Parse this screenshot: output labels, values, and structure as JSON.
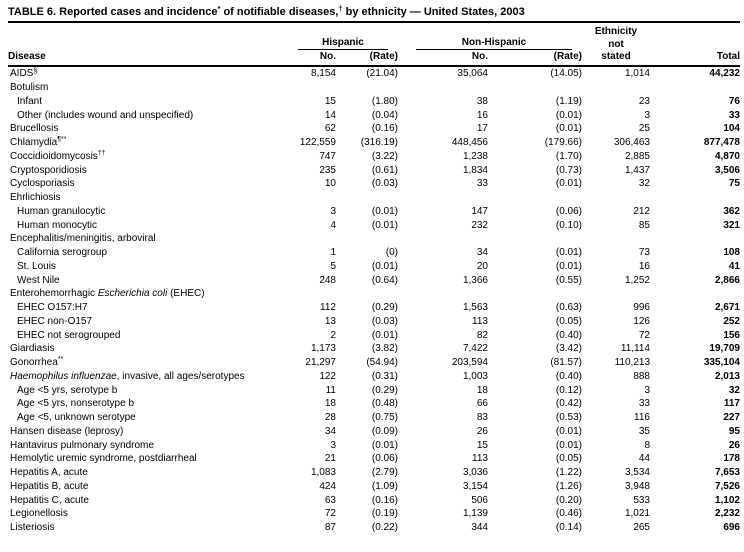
{
  "title": {
    "parts": [
      {
        "t": "TABLE 6. Reported cases and incidence"
      },
      {
        "t": "*",
        "sup": true
      },
      {
        "t": " of notifiable diseases,"
      },
      {
        "t": "†",
        "sup": true
      },
      {
        "t": " by ethnicity — United States, 2003"
      }
    ]
  },
  "columns": {
    "disease": "Disease",
    "hispanic": "Hispanic",
    "non_hispanic": "Non-Hispanic",
    "ethnicity_line1": "Ethnicity",
    "ethnicity_line2": "not",
    "ethnicity_line3": "stated",
    "no": "No.",
    "rate": "(Rate)",
    "total": "Total"
  },
  "rows": [
    {
      "parts": [
        {
          "t": "AIDS"
        },
        {
          "t": "§",
          "sup": true
        }
      ],
      "indent": 0,
      "cells": [
        "8,154",
        "(21.04)",
        "35,064",
        "(14.05)",
        "1,014",
        "44,232"
      ]
    },
    {
      "parts": [
        {
          "t": "Botulism"
        }
      ],
      "indent": 0,
      "cells": [
        "",
        "",
        "",
        "",
        "",
        ""
      ]
    },
    {
      "parts": [
        {
          "t": "Infant"
        }
      ],
      "indent": 1,
      "cells": [
        "15",
        "(1.80)",
        "38",
        "(1.19)",
        "23",
        "76"
      ]
    },
    {
      "parts": [
        {
          "t": "Other (includes wound and unspecified)"
        }
      ],
      "indent": 1,
      "cells": [
        "14",
        "(0.04)",
        "16",
        "(0.01)",
        "3",
        "33"
      ]
    },
    {
      "parts": [
        {
          "t": "Brucellosis"
        }
      ],
      "indent": 0,
      "cells": [
        "62",
        "(0.16)",
        "17",
        "(0.01)",
        "25",
        "104"
      ]
    },
    {
      "parts": [
        {
          "t": "Chlamydia"
        },
        {
          "t": "¶**",
          "sup": true
        }
      ],
      "indent": 0,
      "cells": [
        "122,559",
        "(316.19)",
        "448,456",
        "(179.66)",
        "306,463",
        "877,478"
      ]
    },
    {
      "parts": [
        {
          "t": "Coccidioidomycosis"
        },
        {
          "t": "††",
          "sup": true
        }
      ],
      "indent": 0,
      "cells": [
        "747",
        "(3.22)",
        "1,238",
        "(1.70)",
        "2,885",
        "4,870"
      ]
    },
    {
      "parts": [
        {
          "t": "Cryptosporidiosis"
        }
      ],
      "indent": 0,
      "cells": [
        "235",
        "(0.61)",
        "1,834",
        "(0.73)",
        "1,437",
        "3,506"
      ]
    },
    {
      "parts": [
        {
          "t": "Cyclosporiasis"
        }
      ],
      "indent": 0,
      "cells": [
        "10",
        "(0.03)",
        "33",
        "(0.01)",
        "32",
        "75"
      ]
    },
    {
      "parts": [
        {
          "t": "Ehrlichiosis"
        }
      ],
      "indent": 0,
      "cells": [
        "",
        "",
        "",
        "",
        "",
        ""
      ]
    },
    {
      "parts": [
        {
          "t": "Human granulocytic"
        }
      ],
      "indent": 1,
      "cells": [
        "3",
        "(0.01)",
        "147",
        "(0.06)",
        "212",
        "362"
      ]
    },
    {
      "parts": [
        {
          "t": "Human monocytic"
        }
      ],
      "indent": 1,
      "cells": [
        "4",
        "(0.01)",
        "232",
        "(0.10)",
        "85",
        "321"
      ]
    },
    {
      "parts": [
        {
          "t": "Encephalitis/meningitis, arboviral"
        }
      ],
      "indent": 0,
      "cells": [
        "",
        "",
        "",
        "",
        "",
        ""
      ]
    },
    {
      "parts": [
        {
          "t": "California serogroup"
        }
      ],
      "indent": 1,
      "cells": [
        "1",
        "(0)",
        "34",
        "(0.01)",
        "73",
        "108"
      ]
    },
    {
      "parts": [
        {
          "t": "St. Louis"
        }
      ],
      "indent": 1,
      "cells": [
        "5",
        "(0.01)",
        "20",
        "(0.01)",
        "16",
        "41"
      ]
    },
    {
      "parts": [
        {
          "t": "West Nile"
        }
      ],
      "indent": 1,
      "cells": [
        "248",
        "(0.64)",
        "1,366",
        "(0.55)",
        "1,252",
        "2,866"
      ]
    },
    {
      "parts": [
        {
          "t": "Enterohemorrhagic "
        },
        {
          "t": "Escherichia coli",
          "i": true
        },
        {
          "t": " (EHEC)"
        }
      ],
      "indent": 0,
      "cells": [
        "",
        "",
        "",
        "",
        "",
        ""
      ]
    },
    {
      "parts": [
        {
          "t": "EHEC O157:H7"
        }
      ],
      "indent": 1,
      "cells": [
        "112",
        "(0.29)",
        "1,563",
        "(0.63)",
        "996",
        "2,671"
      ]
    },
    {
      "parts": [
        {
          "t": "EHEC non-O157"
        }
      ],
      "indent": 1,
      "cells": [
        "13",
        "(0.03)",
        "113",
        "(0.05)",
        "126",
        "252"
      ]
    },
    {
      "parts": [
        {
          "t": "EHEC not serogrouped"
        }
      ],
      "indent": 1,
      "cells": [
        "2",
        "(0.01)",
        "82",
        "(0.40)",
        "72",
        "156"
      ]
    },
    {
      "parts": [
        {
          "t": "Giardiasis"
        }
      ],
      "indent": 0,
      "cells": [
        "1,173",
        "(3.82)",
        "7,422",
        "(3.42)",
        "11,114",
        "19,709"
      ]
    },
    {
      "parts": [
        {
          "t": "Gonorrhea"
        },
        {
          "t": "**",
          "sup": true
        }
      ],
      "indent": 0,
      "cells": [
        "21,297",
        "(54.94)",
        "203,594",
        "(81.57)",
        "110,213",
        "335,104"
      ]
    },
    {
      "parts": [
        {
          "t": "Haemophilus influenzae",
          "i": true
        },
        {
          "t": ", invasive, all ages/serotypes"
        }
      ],
      "indent": 0,
      "cells": [
        "122",
        "(0.31)",
        "1,003",
        "(0.40)",
        "888",
        "2,013"
      ]
    },
    {
      "parts": [
        {
          "t": "Age <5 yrs, serotype b"
        }
      ],
      "indent": 1,
      "cells": [
        "11",
        "(0.29)",
        "18",
        "(0.12)",
        "3",
        "32"
      ]
    },
    {
      "parts": [
        {
          "t": "Age <5 yrs, nonserotype b"
        }
      ],
      "indent": 1,
      "cells": [
        "18",
        "(0.48)",
        "66",
        "(0.42)",
        "33",
        "117"
      ]
    },
    {
      "parts": [
        {
          "t": "Age <5, unknown serotype"
        }
      ],
      "indent": 1,
      "cells": [
        "28",
        "(0.75)",
        "83",
        "(0.53)",
        "116",
        "227"
      ]
    },
    {
      "parts": [
        {
          "t": "Hansen disease (leprosy)"
        }
      ],
      "indent": 0,
      "cells": [
        "34",
        "(0.09)",
        "26",
        "(0.01)",
        "35",
        "95"
      ]
    },
    {
      "parts": [
        {
          "t": "Hantavirus pulmonary syndrome"
        }
      ],
      "indent": 0,
      "cells": [
        "3",
        "(0.01)",
        "15",
        "(0.01)",
        "8",
        "26"
      ]
    },
    {
      "parts": [
        {
          "t": "Hemolytic uremic syndrome, postdiarrheal"
        }
      ],
      "indent": 0,
      "cells": [
        "21",
        "(0.06)",
        "113",
        "(0.05)",
        "44",
        "178"
      ]
    },
    {
      "parts": [
        {
          "t": "Hepatitis A, acute"
        }
      ],
      "indent": 0,
      "cells": [
        "1,083",
        "(2.79)",
        "3,036",
        "(1.22)",
        "3,534",
        "7,653"
      ]
    },
    {
      "parts": [
        {
          "t": "Hepatitis B, acute"
        }
      ],
      "indent": 0,
      "cells": [
        "424",
        "(1.09)",
        "3,154",
        "(1.26)",
        "3,948",
        "7,526"
      ]
    },
    {
      "parts": [
        {
          "t": "Hepatitis C, acute"
        }
      ],
      "indent": 0,
      "cells": [
        "63",
        "(0.16)",
        "506",
        "(0.20)",
        "533",
        "1,102"
      ]
    },
    {
      "parts": [
        {
          "t": "Legionellosis"
        }
      ],
      "indent": 0,
      "cells": [
        "72",
        "(0.19)",
        "1,139",
        "(0.46)",
        "1,021",
        "2,232"
      ]
    },
    {
      "parts": [
        {
          "t": "Listeriosis"
        }
      ],
      "indent": 0,
      "cells": [
        "87",
        "(0.22)",
        "344",
        "(0.14)",
        "265",
        "696"
      ]
    }
  ]
}
